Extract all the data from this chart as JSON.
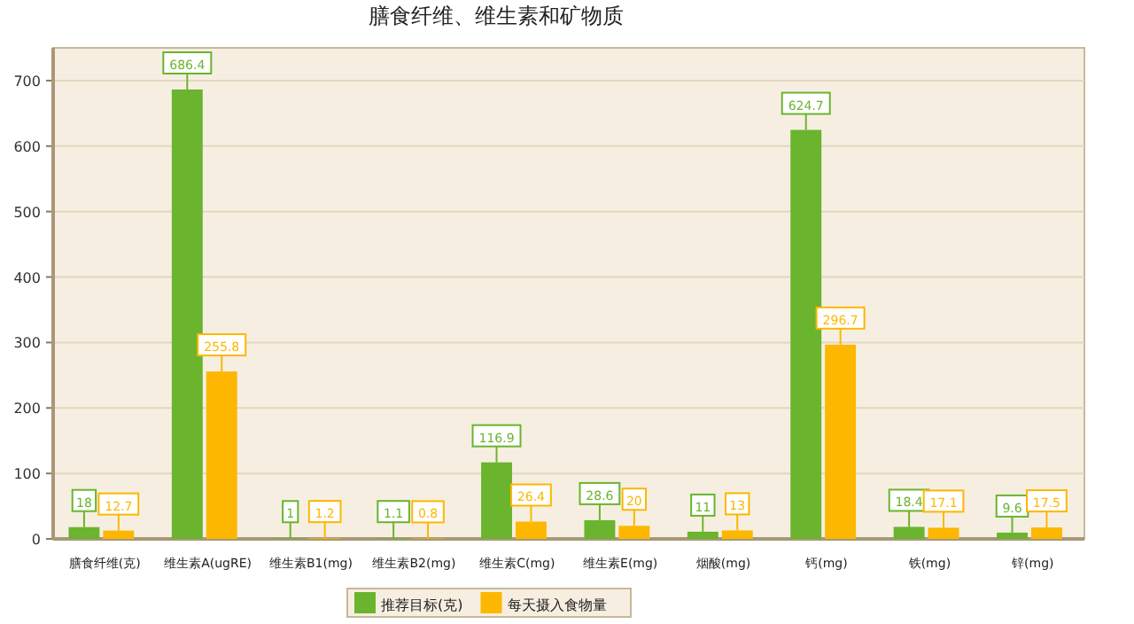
{
  "chart_data": {
    "type": "bar",
    "title": "膳食纤维、维生素和矿物质",
    "categories": [
      "膳食纤维(克)",
      "维生素A(ugRE)",
      "维生素B1(mg)",
      "维生素B2(mg)",
      "维生素C(mg)",
      "维生素E(mg)",
      "烟酸(mg)",
      "钙(mg)",
      "铁(mg)",
      "锌(mg)"
    ],
    "series": [
      {
        "name": "推荐目标(克)",
        "color": "#6ab42e",
        "values": [
          18,
          686.4,
          1,
          1.1,
          116.9,
          28.6,
          11,
          624.7,
          18.4,
          9.6
        ]
      },
      {
        "name": "每天摄入食物量",
        "color": "#fdb700",
        "values": [
          12.7,
          255.8,
          1.2,
          0.8,
          26.4,
          20,
          13,
          296.7,
          17.1,
          17.5
        ]
      }
    ],
    "ylim": [
      0,
      750
    ],
    "yticks": [
      0,
      100,
      200,
      300,
      400,
      500,
      600,
      700
    ],
    "grid": "y",
    "legend": "bottom",
    "data_labels": true
  }
}
